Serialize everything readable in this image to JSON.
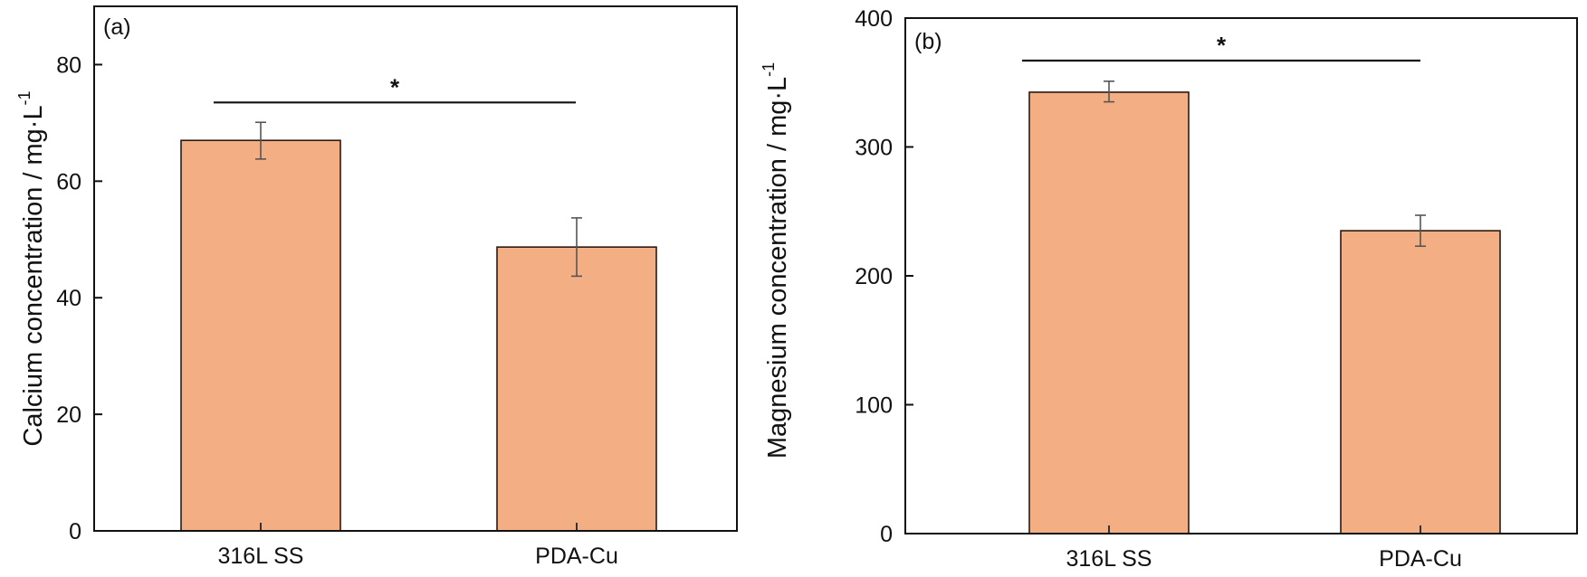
{
  "chart_data": [
    {
      "type": "bar",
      "panel_label": "(a)",
      "title": "",
      "categories": [
        "316L SS",
        "PDA-Cu"
      ],
      "values": [
        67.0,
        48.7
      ],
      "errors": [
        [
          63.8,
          70.1
        ],
        [
          43.7,
          53.7
        ]
      ],
      "ylabel_main": "Calcium concentration / mg·L",
      "ylabel_sup": "-1",
      "xlabel": "",
      "ylim": [
        0,
        90
      ],
      "yticks": [
        0,
        20,
        40,
        60,
        80
      ],
      "ytick_labels": [
        "0",
        "20",
        "40",
        "60",
        "80"
      ],
      "significance": {
        "from": "316L SS",
        "to": "PDA-Cu",
        "level": 73.5,
        "label": "*"
      },
      "bar_color": "#f4ae84",
      "grid": false
    },
    {
      "type": "bar",
      "panel_label": "(b)",
      "title": "",
      "categories": [
        "316L SS",
        "PDA-Cu"
      ],
      "values": [
        342.5,
        235.0
      ],
      "errors": [
        [
          335.0,
          351.0
        ],
        [
          223.0,
          247.0
        ]
      ],
      "ylabel_main": "Magnesium concentration / mg·L",
      "ylabel_sup": "-1",
      "xlabel": "",
      "ylim": [
        0,
        400
      ],
      "yticks": [
        0,
        100,
        200,
        300,
        400
      ],
      "ytick_labels": [
        "0",
        "100",
        "200",
        "300",
        "400"
      ],
      "significance": {
        "from": "316L SS",
        "to": "PDA-Cu",
        "level": 367,
        "label": "*"
      },
      "bar_color": "#f4ae84",
      "grid": false
    }
  ]
}
